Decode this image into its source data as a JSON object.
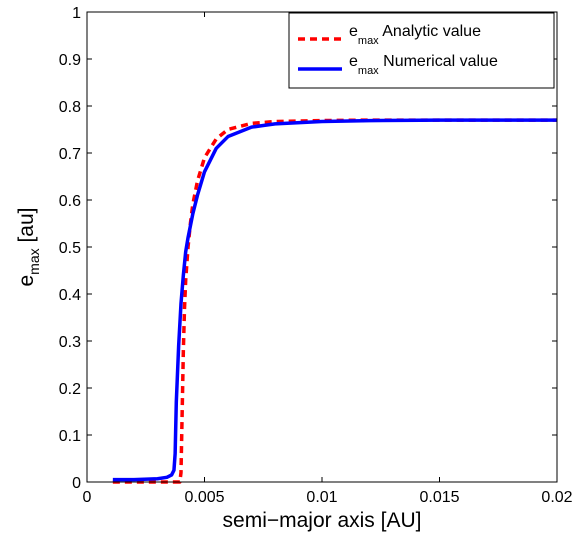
{
  "chart_data": {
    "type": "line",
    "xlabel": "semi−major axis [AU]",
    "ylabel": {
      "main": "e",
      "sub": "max",
      "unit": " [au]"
    },
    "xlim": [
      0,
      0.02
    ],
    "ylim": [
      0,
      1
    ],
    "xticks": [
      0,
      0.005,
      0.01,
      0.015,
      0.02
    ],
    "xtick_labels": [
      "0",
      "0.005",
      "0.01",
      "0.015",
      "0.02"
    ],
    "yticks": [
      0,
      0.1,
      0.2,
      0.3,
      0.4,
      0.5,
      0.6,
      0.7,
      0.8,
      0.9,
      1
    ],
    "ytick_labels": [
      "0",
      "0.1",
      "0.2",
      "0.3",
      "0.4",
      "0.5",
      "0.6",
      "0.7",
      "0.8",
      "0.9",
      "1"
    ],
    "grid": false,
    "legend_position": "top-right",
    "series": [
      {
        "name": "e_max Analytic value",
        "legend": {
          "main": "e",
          "sub": "max",
          "rest": " Analytic value"
        },
        "color": "#ff0000",
        "style": "dashed",
        "x": [
          0.0011,
          0.0038,
          0.00395,
          0.004,
          0.00405,
          0.0041,
          0.00415,
          0.0042,
          0.0043,
          0.0044,
          0.0045,
          0.0047,
          0.005,
          0.0055,
          0.006,
          0.007,
          0.008,
          0.01,
          0.012,
          0.015,
          0.02
        ],
        "y": [
          0.0,
          0.0,
          0.0,
          0.02,
          0.15,
          0.28,
          0.37,
          0.43,
          0.5,
          0.55,
          0.59,
          0.64,
          0.69,
          0.73,
          0.75,
          0.763,
          0.767,
          0.769,
          0.77,
          0.77,
          0.77
        ]
      },
      {
        "name": "e_max Numerical value",
        "legend": {
          "main": "e",
          "sub": "max",
          "rest": " Numerical value"
        },
        "color": "#0000ff",
        "style": "solid",
        "x": [
          0.0011,
          0.002,
          0.003,
          0.0034,
          0.0036,
          0.0037,
          0.00375,
          0.0038,
          0.0039,
          0.004,
          0.0041,
          0.0042,
          0.0043,
          0.0045,
          0.0047,
          0.005,
          0.0055,
          0.006,
          0.007,
          0.008,
          0.01,
          0.012,
          0.015,
          0.02
        ],
        "y": [
          0.005,
          0.005,
          0.007,
          0.01,
          0.015,
          0.025,
          0.06,
          0.17,
          0.29,
          0.38,
          0.44,
          0.49,
          0.52,
          0.57,
          0.61,
          0.66,
          0.71,
          0.735,
          0.755,
          0.762,
          0.767,
          0.769,
          0.77,
          0.77
        ]
      }
    ]
  }
}
